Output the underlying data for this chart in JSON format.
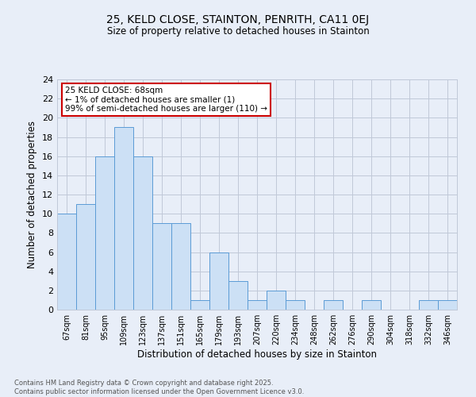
{
  "title1": "25, KELD CLOSE, STAINTON, PENRITH, CA11 0EJ",
  "title2": "Size of property relative to detached houses in Stainton",
  "xlabel": "Distribution of detached houses by size in Stainton",
  "ylabel": "Number of detached properties",
  "bins": [
    "67sqm",
    "81sqm",
    "95sqm",
    "109sqm",
    "123sqm",
    "137sqm",
    "151sqm",
    "165sqm",
    "179sqm",
    "193sqm",
    "207sqm",
    "220sqm",
    "234sqm",
    "248sqm",
    "262sqm",
    "276sqm",
    "290sqm",
    "304sqm",
    "318sqm",
    "332sqm",
    "346sqm"
  ],
  "values": [
    10,
    11,
    16,
    19,
    16,
    9,
    9,
    1,
    6,
    3,
    1,
    2,
    1,
    0,
    1,
    0,
    1,
    0,
    0,
    1,
    1
  ],
  "bar_face_color": "#cce0f5",
  "bar_edge_color": "#5b9bd5",
  "grid_color": "#c0c8d8",
  "background_color": "#e8eef8",
  "plot_bg_color": "#dce6f5",
  "annotation_box_color": "#ffffff",
  "annotation_border_color": "#cc0000",
  "annotation_text": "25 KELD CLOSE: 68sqm\n← 1% of detached houses are smaller (1)\n99% of semi-detached houses are larger (110) →",
  "footer_text": "Contains HM Land Registry data © Crown copyright and database right 2025.\nContains public sector information licensed under the Open Government Licence v3.0.",
  "ylim": [
    0,
    24
  ],
  "yticks": [
    0,
    2,
    4,
    6,
    8,
    10,
    12,
    14,
    16,
    18,
    20,
    22,
    24
  ],
  "figsize": [
    6.0,
    5.0
  ],
  "dpi": 100
}
